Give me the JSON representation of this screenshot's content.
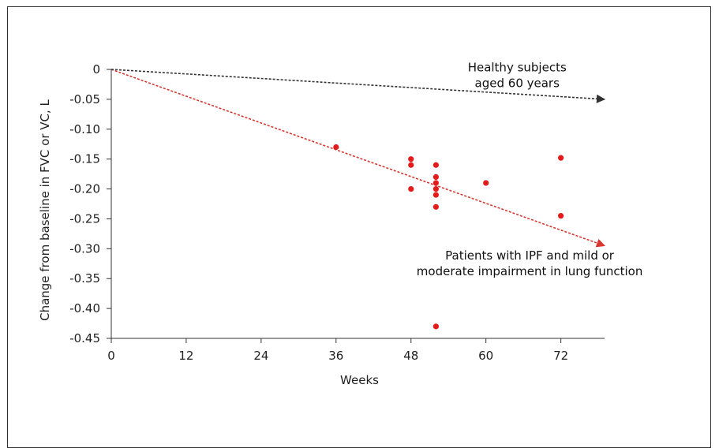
{
  "chart_data": {
    "type": "scatter",
    "xlabel": "Weeks",
    "ylabel": "Change from baseline in FVC or VC, L",
    "xlim": [
      0,
      79
    ],
    "ylim": [
      -0.45,
      0
    ],
    "xticks": [
      0,
      12,
      24,
      36,
      48,
      60,
      72
    ],
    "yticks": [
      0,
      -0.05,
      -0.1,
      -0.15,
      -0.2,
      -0.25,
      -0.3,
      -0.35,
      -0.4,
      -0.45
    ],
    "ytick_labels": [
      "0",
      "-0.05",
      "-0.10",
      "-0.15",
      "-0.20",
      "-0.25",
      "-0.30",
      "-0.35",
      "-0.40",
      "-0.45"
    ],
    "grid": false,
    "series": [
      {
        "type": "scatter",
        "color": "#e31b1b",
        "points": [
          [
            36,
            -0.13
          ],
          [
            48,
            -0.15
          ],
          [
            48,
            -0.16
          ],
          [
            48,
            -0.2
          ],
          [
            52,
            -0.16
          ],
          [
            52,
            -0.18
          ],
          [
            52,
            -0.19
          ],
          [
            52,
            -0.2
          ],
          [
            52,
            -0.21
          ],
          [
            52,
            -0.23
          ],
          [
            52,
            -0.43
          ],
          [
            60,
            -0.19
          ],
          [
            72,
            -0.148
          ],
          [
            72,
            -0.245
          ]
        ]
      },
      {
        "type": "trend-line",
        "color": "#d7372f",
        "dash": true,
        "from": [
          0,
          0
        ],
        "to": [
          79,
          -0.295
        ]
      },
      {
        "type": "trend-line",
        "color": "#333333",
        "dash": true,
        "from": [
          0,
          0
        ],
        "to": [
          79,
          -0.05
        ]
      }
    ],
    "annotations": [
      {
        "lines": [
          "Healthy subjects",
          "aged 60 years"
        ],
        "at": [
          65,
          -0.003
        ],
        "anchor": "middle"
      },
      {
        "lines": [
          "Patients with IPF and mild or",
          "moderate impairment in lung function"
        ],
        "at": [
          67,
          -0.318
        ],
        "anchor": "middle"
      }
    ]
  }
}
